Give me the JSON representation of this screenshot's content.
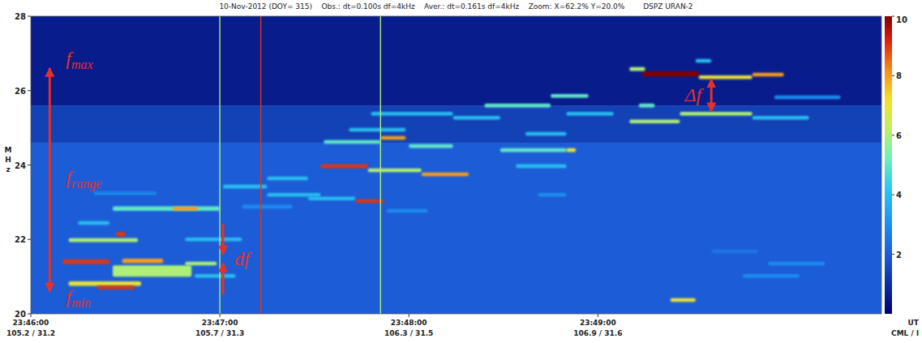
{
  "chart_data": {
    "type": "heatmap",
    "title": "10-Nov-2012 (DOY= 315)    Obs.: dt=0.100s df=4kHz    Aver.: dt=0.161s df=4kHz    Zoom: X=62.2% Y=20.0%        DSPZ URAN-2",
    "y_label": "MHz",
    "x_label": "UT",
    "x2_label": "CML / l",
    "xlim": [
      85560,
      85830
    ],
    "ylim": [
      20,
      28
    ],
    "xticks": [
      {
        "value": 85560,
        "label": "23:46:00"
      },
      {
        "value": 85620,
        "label": "23:47:00"
      },
      {
        "value": 85680,
        "label": "23:48:00"
      },
      {
        "value": 85740,
        "label": "23:49:00"
      }
    ],
    "cml_labels": [
      "105.2 / 31.2",
      "105.7 / 31.3",
      "106.3 / 31.5",
      "106.9 / 31.6"
    ],
    "yticks": [
      20,
      22,
      24,
      26,
      28
    ],
    "grid": false,
    "colorbar": {
      "range": [
        0,
        10
      ],
      "ticks": [
        2,
        4,
        6,
        8,
        10
      ]
    },
    "interference": [
      [
        85620,
        6
      ],
      [
        85633,
        9
      ],
      [
        85671,
        6
      ]
    ],
    "cells": [
      [
        85560,
        85830,
        20,
        24.6,
        2
      ],
      [
        85560,
        85830,
        24.6,
        25.6,
        1.4
      ],
      [
        85560,
        85830,
        25.6,
        28,
        0.6
      ],
      [
        85572,
        85595,
        20.75,
        20.87,
        7
      ],
      [
        85581,
        85593,
        20.66,
        20.76,
        9
      ],
      [
        85570,
        85585,
        21.34,
        21.46,
        9
      ],
      [
        85589,
        85602,
        21.36,
        21.48,
        8
      ],
      [
        85586,
        85611,
        21.0,
        21.3,
        6
      ],
      [
        85572,
        85594,
        21.93,
        22.03,
        6
      ],
      [
        85587,
        85590,
        22.08,
        22.2,
        9
      ],
      [
        85609,
        85627,
        21.95,
        22.05,
        4
      ],
      [
        85586,
        85620,
        22.77,
        22.89,
        5
      ],
      [
        85605,
        85613,
        22.78,
        22.88,
        8
      ],
      [
        85575,
        85585,
        22.39,
        22.49,
        4
      ],
      [
        85580,
        85600,
        23.2,
        23.28,
        3
      ],
      [
        85609,
        85619,
        21.3,
        21.4,
        6
      ],
      [
        85612,
        85625,
        20.97,
        21.07,
        4
      ],
      [
        85621,
        85635,
        23.37,
        23.47,
        4
      ],
      [
        85635,
        85648,
        23.59,
        23.69,
        4
      ],
      [
        85627,
        85643,
        22.83,
        22.93,
        3
      ],
      [
        85652,
        85667,
        23.92,
        24.02,
        9
      ],
      [
        85667,
        85684,
        23.81,
        23.91,
        6
      ],
      [
        85671,
        85679,
        24.68,
        24.78,
        8
      ],
      [
        85653,
        85671,
        24.57,
        24.67,
        5
      ],
      [
        85663,
        85672,
        22.98,
        23.08,
        9
      ],
      [
        85648,
        85663,
        23.05,
        23.15,
        4
      ],
      [
        85684,
        85699,
        23.7,
        23.8,
        8
      ],
      [
        85680,
        85694,
        24.46,
        24.56,
        5
      ],
      [
        85661,
        85679,
        24.9,
        25.0,
        4
      ],
      [
        85668,
        85694,
        25.33,
        25.43,
        4
      ],
      [
        85694,
        85709,
        25.22,
        25.32,
        4
      ],
      [
        85673,
        85686,
        22.72,
        22.82,
        3
      ],
      [
        85635,
        85652,
        23.15,
        23.25,
        4
      ],
      [
        85704,
        85725,
        25.55,
        25.65,
        5
      ],
      [
        85709,
        85730,
        24.35,
        24.45,
        5
      ],
      [
        85730,
        85733,
        24.35,
        24.45,
        7
      ],
      [
        85717,
        85730,
        24.79,
        24.89,
        4
      ],
      [
        85714,
        85730,
        23.92,
        24.02,
        4
      ],
      [
        85725,
        85737,
        25.81,
        25.91,
        5
      ],
      [
        85730,
        85745,
        25.33,
        25.43,
        4
      ],
      [
        85721,
        85730,
        23.15,
        23.25,
        3
      ],
      [
        85754,
        85772,
        26.38,
        26.52,
        10
      ],
      [
        85772,
        85789,
        26.31,
        26.41,
        7
      ],
      [
        85789,
        85799,
        26.38,
        26.48,
        8
      ],
      [
        85750,
        85755,
        26.53,
        26.63,
        6
      ],
      [
        85750,
        85766,
        25.12,
        25.22,
        6
      ],
      [
        85766,
        85789,
        25.33,
        25.43,
        6
      ],
      [
        85789,
        85807,
        25.22,
        25.32,
        4
      ],
      [
        85753,
        85758,
        25.55,
        25.65,
        5
      ],
      [
        85771,
        85776,
        26.75,
        26.85,
        4
      ],
      [
        85796,
        85817,
        25.77,
        25.87,
        3
      ],
      [
        85763,
        85771,
        20.32,
        20.42,
        7
      ],
      [
        85786,
        85804,
        20.97,
        21.07,
        3
      ],
      [
        85794,
        85812,
        21.3,
        21.4,
        3
      ],
      [
        85776,
        85791,
        21.63,
        21.73,
        2.5
      ]
    ],
    "annotations": [
      {
        "kind": "range",
        "t": 85566,
        "f": [
          20.55,
          26.65
        ],
        "labels": [
          {
            "text": "f",
            "sub": "max"
          },
          {
            "text": "f",
            "sub": "range"
          },
          {
            "text": "f",
            "sub": "min"
          }
        ]
      },
      {
        "kind": "gap",
        "t": 85621,
        "f": [
          21.4,
          21.55
        ],
        "labels": [
          {
            "text": "df"
          }
        ]
      },
      {
        "kind": "span",
        "t": 85776,
        "f": [
          25.4,
          26.35
        ],
        "labels": [
          {
            "text": "Δf"
          }
        ]
      }
    ]
  }
}
